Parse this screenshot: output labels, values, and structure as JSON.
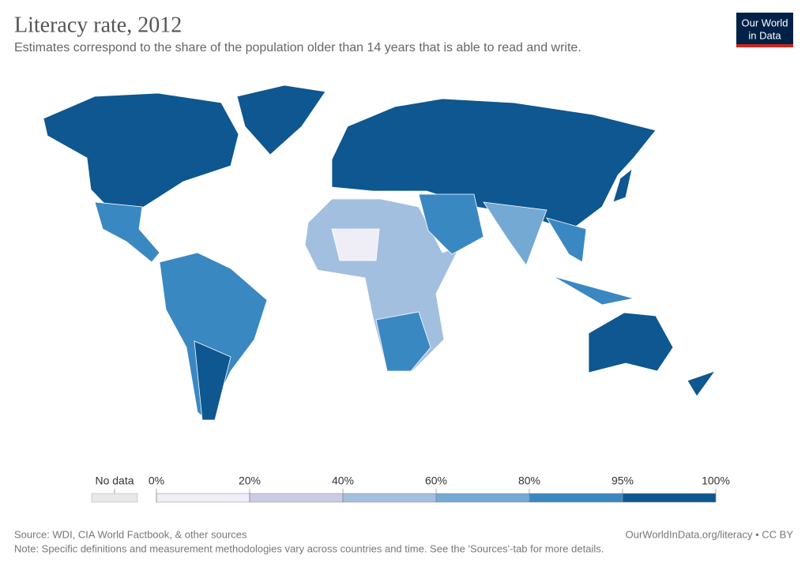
{
  "header": {
    "title": "Literacy rate, 2012",
    "subtitle": "Estimates correspond to the share of the population older than 14 years that is able to read and write.",
    "logo_lines": [
      "Our World",
      "in Data"
    ]
  },
  "legend": {
    "no_data_label": "No data",
    "no_data_color": "#e8e8e8",
    "ticks": [
      {
        "value": 0,
        "label": "0%"
      },
      {
        "value": 20,
        "label": "20%"
      },
      {
        "value": 40,
        "label": "40%"
      },
      {
        "value": 60,
        "label": "60%"
      },
      {
        "value": 80,
        "label": "80%"
      },
      {
        "value": 95,
        "label": "95%"
      },
      {
        "value": 100,
        "label": "100%"
      }
    ],
    "colors": [
      "#efeef7",
      "#cbcbe4",
      "#a3bfdf",
      "#74a9d4",
      "#3a88c2",
      "#0e5790"
    ]
  },
  "footer": {
    "source": "Source: WDI, CIA World Factbook, & other sources",
    "credit": "OurWorldInData.org/literacy • CC BY",
    "note": "Note: Specific definitions and measurement methodologies vary across countries and time. See the 'Sources'-tab for more details."
  }
}
